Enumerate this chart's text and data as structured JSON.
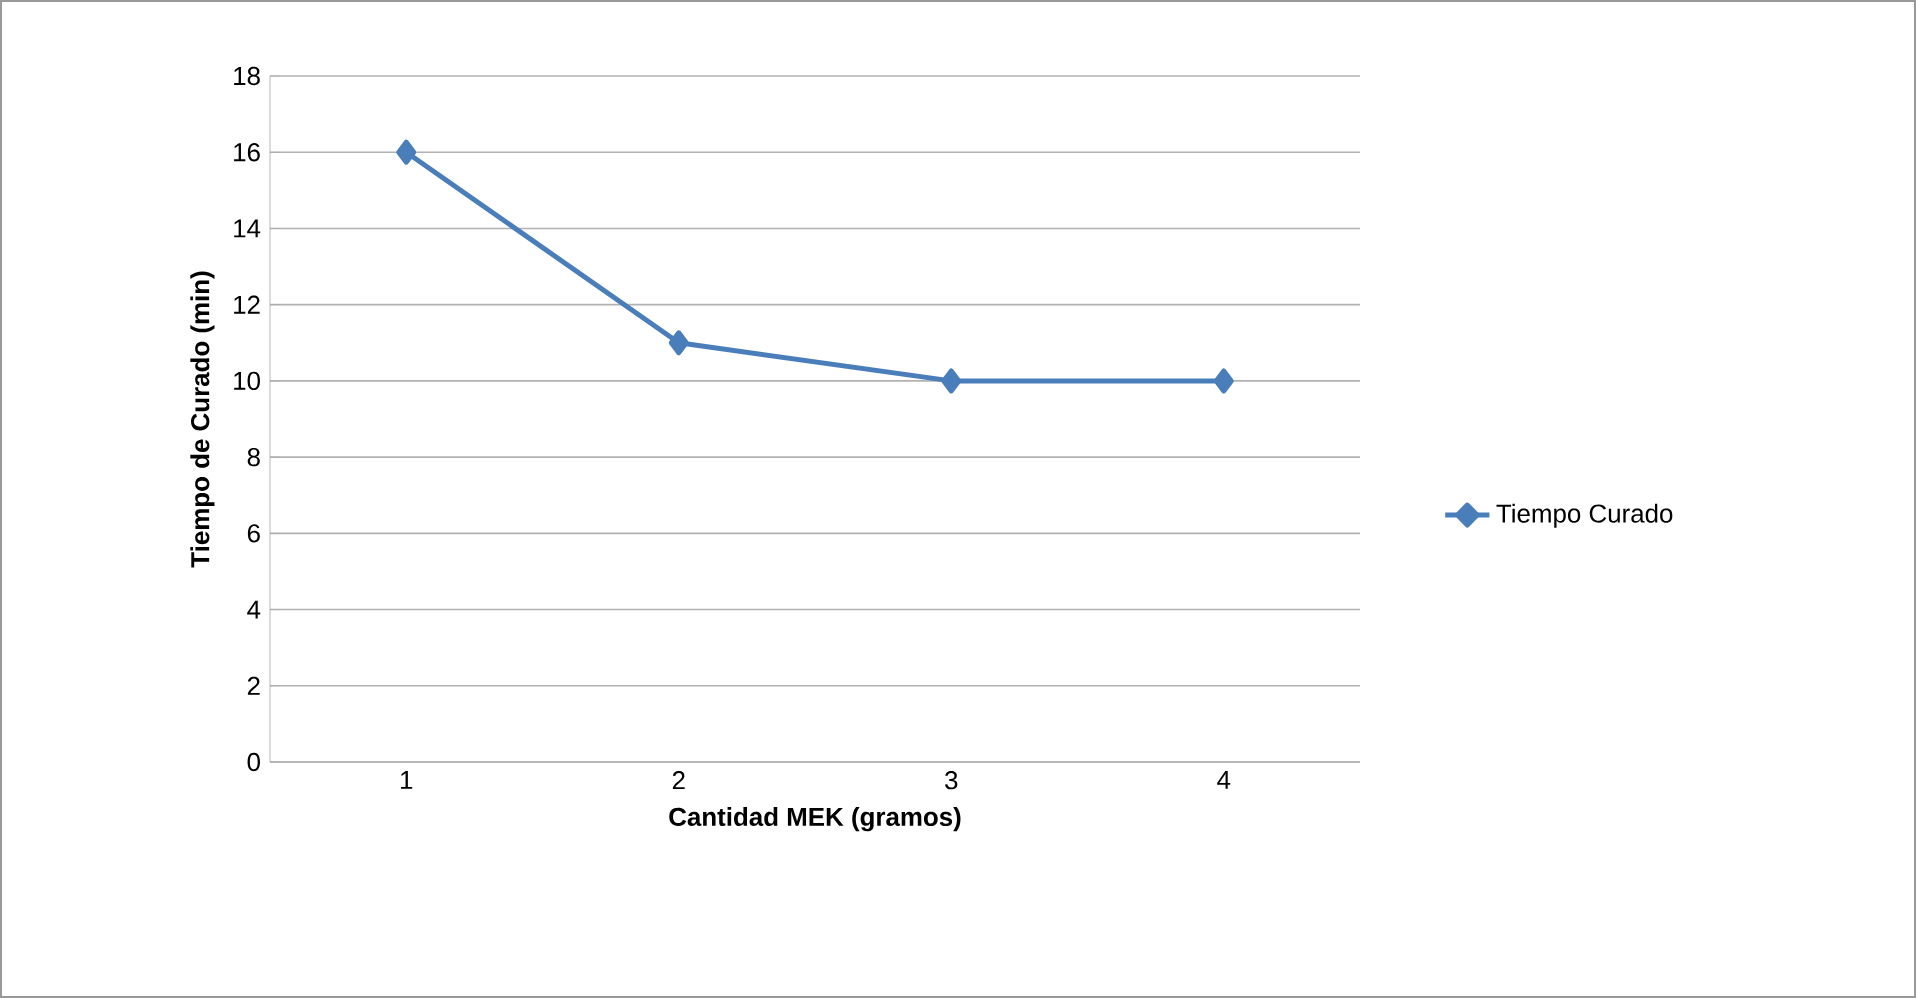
{
  "chart_data": {
    "type": "line",
    "xlabel": "Cantidad MEK (gramos)",
    "ylabel": "Tiempo de Curado (min)",
    "categories": [
      "1",
      "2",
      "3",
      "4"
    ],
    "series": [
      {
        "name": "Tiempo Curado",
        "color": "#4a7ebb",
        "values": [
          16,
          11,
          10,
          10
        ]
      }
    ],
    "ylim": [
      0,
      18
    ],
    "yticks": [
      0,
      2,
      4,
      6,
      8,
      10,
      12,
      14,
      16,
      18
    ],
    "grid": "y",
    "legend": "right",
    "marker": "diamond",
    "line_style": "solid"
  }
}
